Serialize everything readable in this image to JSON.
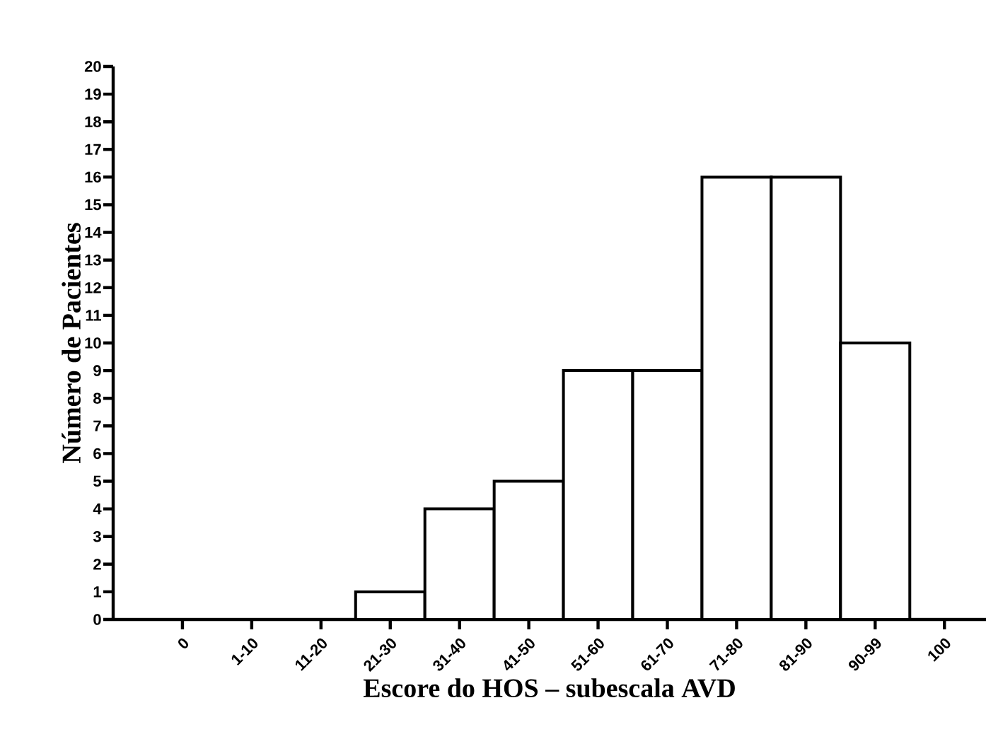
{
  "chart_data": {
    "type": "bar",
    "xlabel": "Escore do HOS – subescala AVD",
    "ylabel": "Número de Pacientes",
    "categories": [
      "0",
      "1-10",
      "11-20",
      "21-30",
      "31-40",
      "41-50",
      "51-60",
      "61-70",
      "71-80",
      "81-90",
      "90-99",
      "100"
    ],
    "values": [
      0,
      0,
      0,
      1,
      4,
      5,
      9,
      9,
      16,
      16,
      10,
      0
    ],
    "color": "#ffffff",
    "ylim": [
      0,
      20
    ],
    "yticks": [
      0,
      1,
      2,
      3,
      4,
      5,
      6,
      7,
      8,
      9,
      10,
      11,
      12,
      13,
      14,
      15,
      16,
      17,
      18,
      19,
      20
    ],
    "grid": false
  }
}
